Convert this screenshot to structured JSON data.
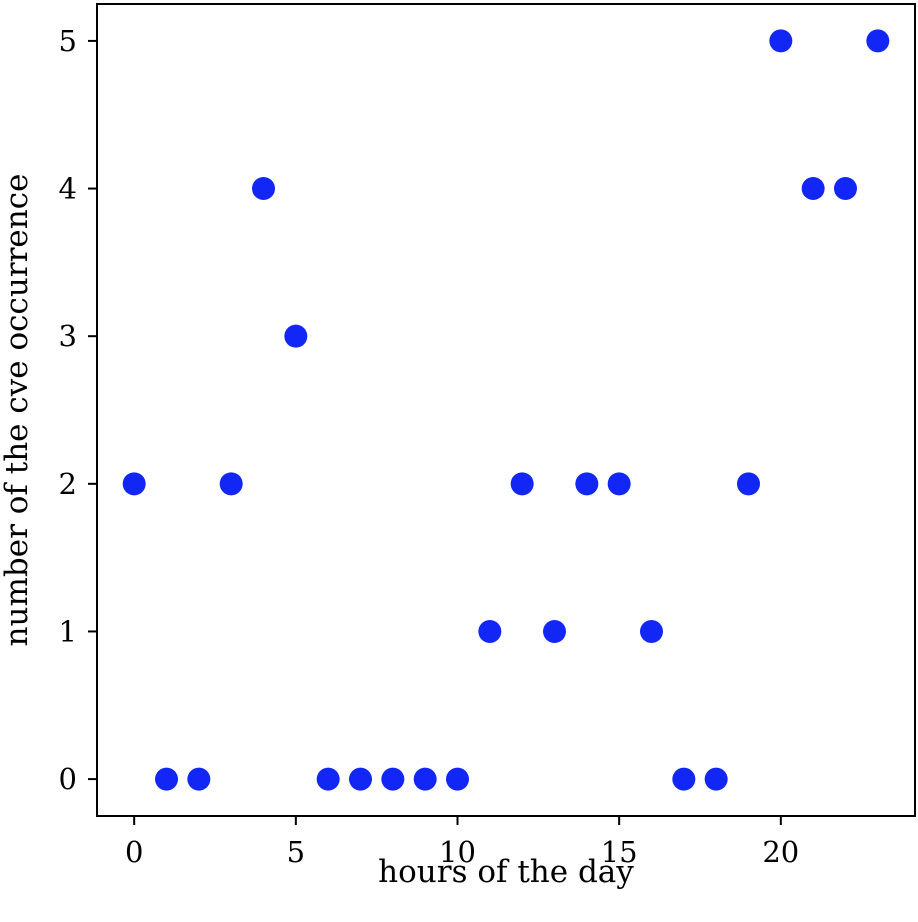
{
  "chart_data": {
    "type": "scatter",
    "title": "",
    "xlabel": "hours of the day",
    "ylabel": "number of the cve occurrence",
    "xlim": [
      -1.15,
      24.15
    ],
    "ylim": [
      -0.25,
      5.25
    ],
    "xticks": [
      0,
      5,
      10,
      15,
      20
    ],
    "yticks": [
      0,
      1,
      2,
      3,
      4,
      5
    ],
    "xtick_labels": [
      "0",
      "5",
      "10",
      "15",
      "20"
    ],
    "ytick_labels": [
      "0",
      "1",
      "2",
      "3",
      "4",
      "5"
    ],
    "grid": false,
    "legend": "none",
    "marker_color": "#1227f5",
    "series": [
      {
        "x": [
          0,
          1,
          2,
          3,
          4,
          5,
          6,
          7,
          8,
          9,
          10,
          11,
          12,
          13,
          14,
          15,
          16,
          17,
          18,
          19,
          20,
          21,
          22,
          23
        ],
        "y": [
          2,
          0,
          0,
          2,
          4,
          3,
          0,
          0,
          0,
          0,
          0,
          1,
          2,
          1,
          2,
          2,
          1,
          0,
          0,
          2,
          5,
          4,
          4,
          5
        ]
      }
    ]
  }
}
